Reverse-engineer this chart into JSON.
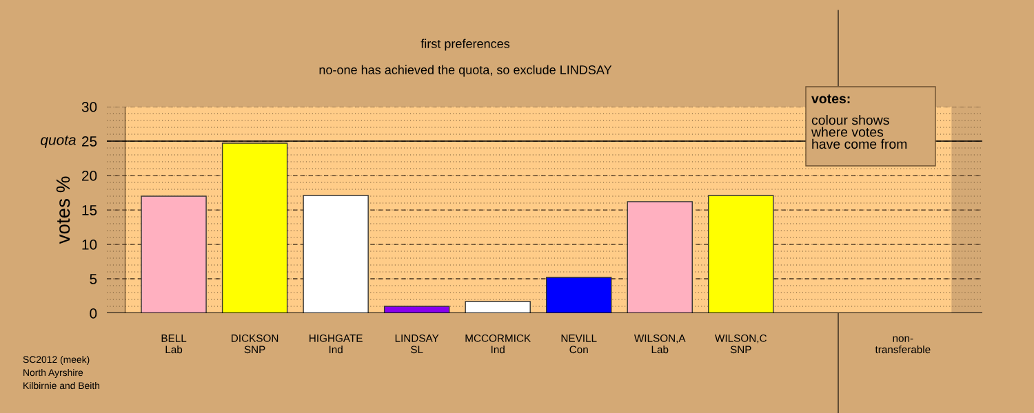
{
  "chart_data": {
    "type": "bar",
    "title": "first preferences",
    "subtitle": "no-one has achieved the quota, so exclude LINDSAY",
    "ylabel": "votes %",
    "categories": [
      "BELL\nLab",
      "DICKSON\nSNP",
      "HIGHGATE\nInd",
      "LINDSAY\nSL",
      "MCCORMICK\nInd",
      "NEVILL\nCon",
      "WILSON,A\nLab",
      "WILSON,C\nSNP",
      null,
      "non-\ntransferable"
    ],
    "values": [
      17.0,
      24.7,
      17.1,
      1.0,
      1.7,
      5.2,
      16.2,
      17.1,
      null,
      0
    ],
    "colors": [
      "#ffb0c0",
      "#ffff00",
      "#ffffff",
      "#8800ee",
      "#ffffff",
      "#0000ff",
      "#ffb0c0",
      "#ffff00",
      null,
      "#ffffff"
    ],
    "ylim": [
      0,
      30
    ],
    "yticks": [
      0,
      5,
      10,
      15,
      20,
      25,
      30
    ],
    "grid": "y",
    "ref_lines": [
      {
        "axis": "y",
        "value": 25,
        "label": "quota",
        "color": "#000000",
        "line_style": "solid"
      }
    ],
    "annotations": [
      "votes:",
      "colour shows\nwhere votes\nhave come from",
      "SC2012 (meek)\nNorth Ayrshire\nKilbirnie and Beith"
    ]
  }
}
